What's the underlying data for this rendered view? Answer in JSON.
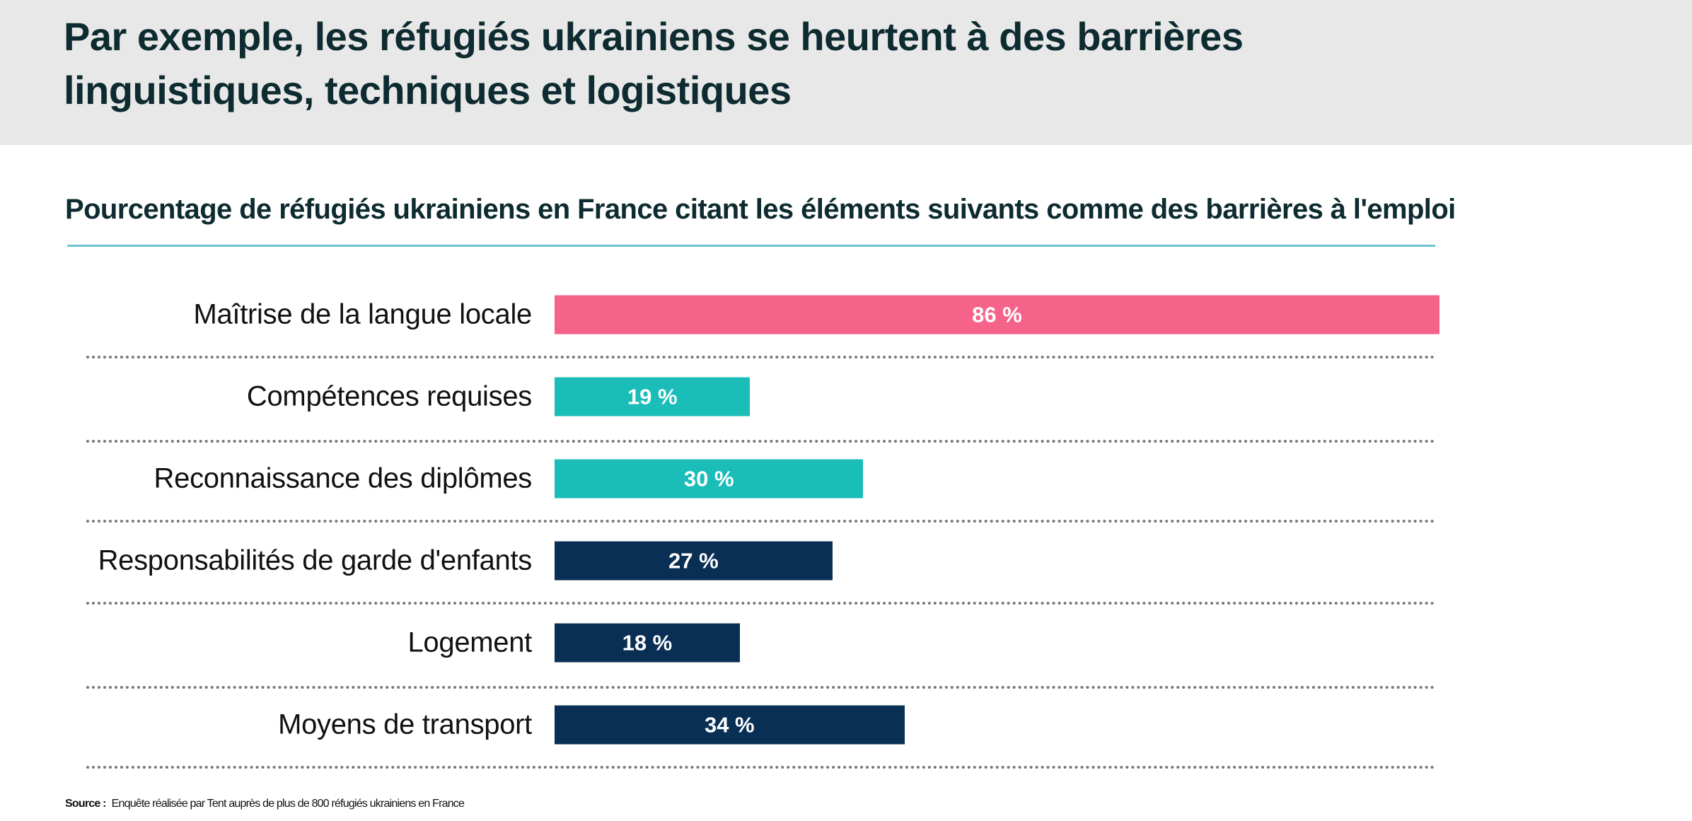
{
  "header": {
    "title": "Par exemple, les réfugiés ukrainiens se heurtent à des barrières linguistiques, techniques et logistiques"
  },
  "chart_data": {
    "type": "bar",
    "orientation": "horizontal",
    "title": "Pourcentage de réfugiés ukrainiens en France citant les éléments suivants comme des barrières à l'emploi",
    "categories": [
      "Maîtrise de la langue locale",
      "Compétences requises",
      "Reconnaissance des diplômes",
      "Responsabilités de garde d'enfants",
      "Logement",
      "Moyens de transport"
    ],
    "values": [
      86,
      19,
      30,
      27,
      18,
      34
    ],
    "data_labels": [
      "86 %",
      "19 %",
      "30 %",
      "27 %",
      "18 %",
      "34 %"
    ],
    "colors": [
      "#f5638a",
      "#1bbdb8",
      "#1bbdb8",
      "#0a2f55",
      "#0a2f55",
      "#0a2f55"
    ],
    "xlim": [
      0,
      86
    ],
    "grid": false
  },
  "footer": {
    "source_label": "Source :",
    "source_text": "Enquête réalisée par Tent auprès de plus de 800 réfugiés ukrainiens en France"
  }
}
